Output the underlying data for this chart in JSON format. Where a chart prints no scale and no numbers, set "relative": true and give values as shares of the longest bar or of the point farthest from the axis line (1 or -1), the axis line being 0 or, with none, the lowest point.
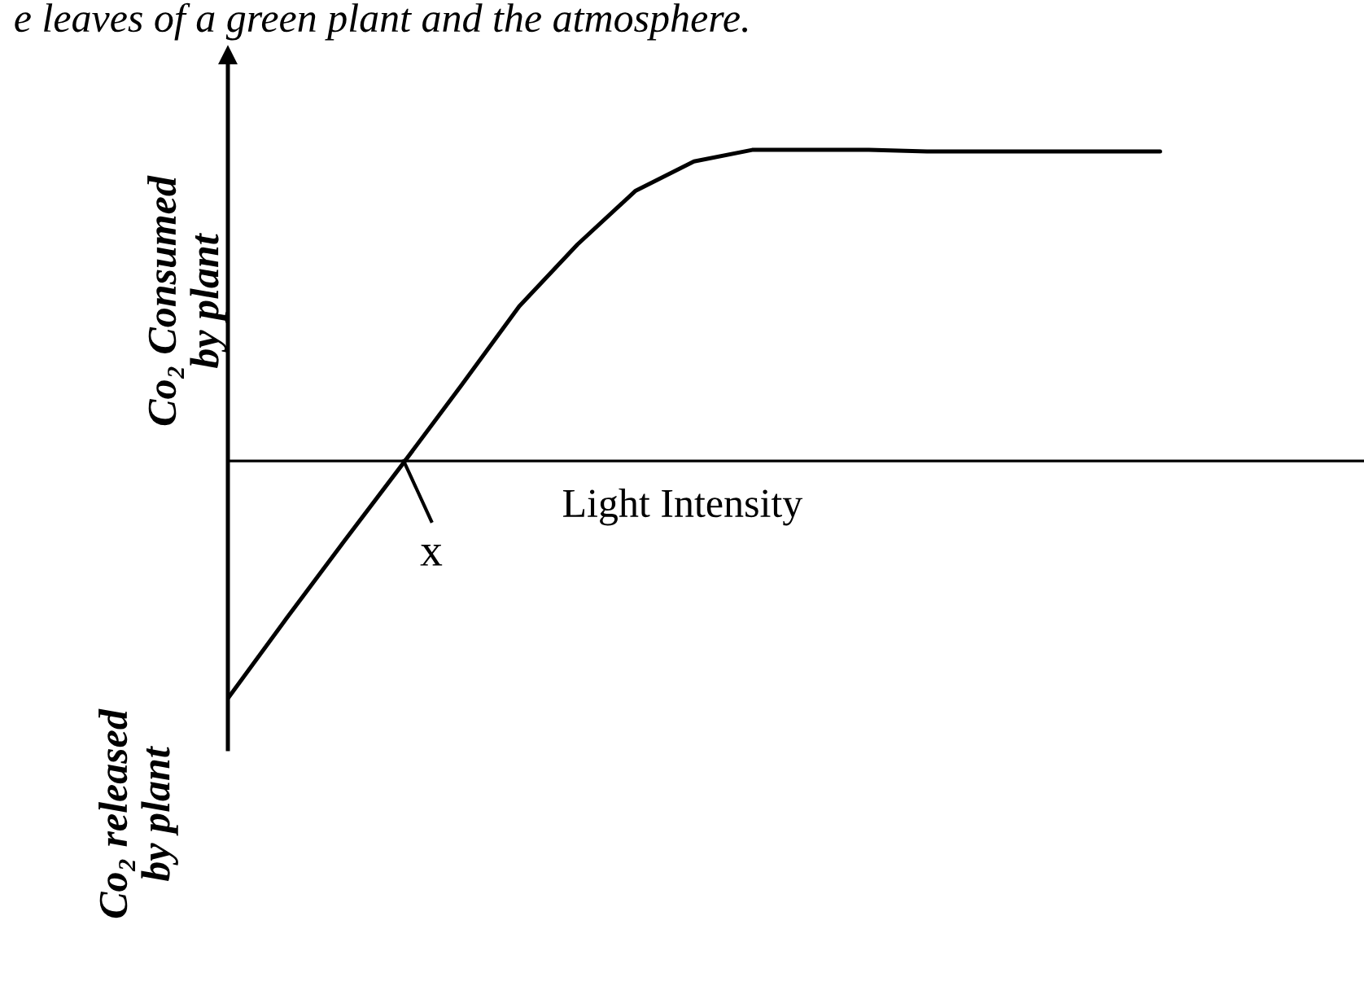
{
  "chart_data": {
    "type": "line",
    "relative": true,
    "title": "e leaves of a green plant and the atmosphere.",
    "xlabel": "Light Intensity",
    "categories": [
      null,
      null,
      null,
      null,
      null,
      null,
      null,
      null,
      null,
      null,
      null,
      null,
      null,
      null,
      null,
      null,
      null,
      null,
      null,
      null
    ],
    "series": [
      {
        "color": "#000000",
        "values": [
          -0.764,
          -0.508,
          -0.257,
          -0.01,
          0.241,
          0.497,
          0.696,
          0.869,
          0.963,
          1.0,
          1.0,
          1.0,
          0.995,
          0.995,
          0.995,
          0.995,
          0.995,
          null,
          null,
          null
        ]
      }
    ],
    "annotations": [
      "x",
      "Co₂ Consumed\nby plant",
      "Co₂ released\nby plant"
    ]
  }
}
